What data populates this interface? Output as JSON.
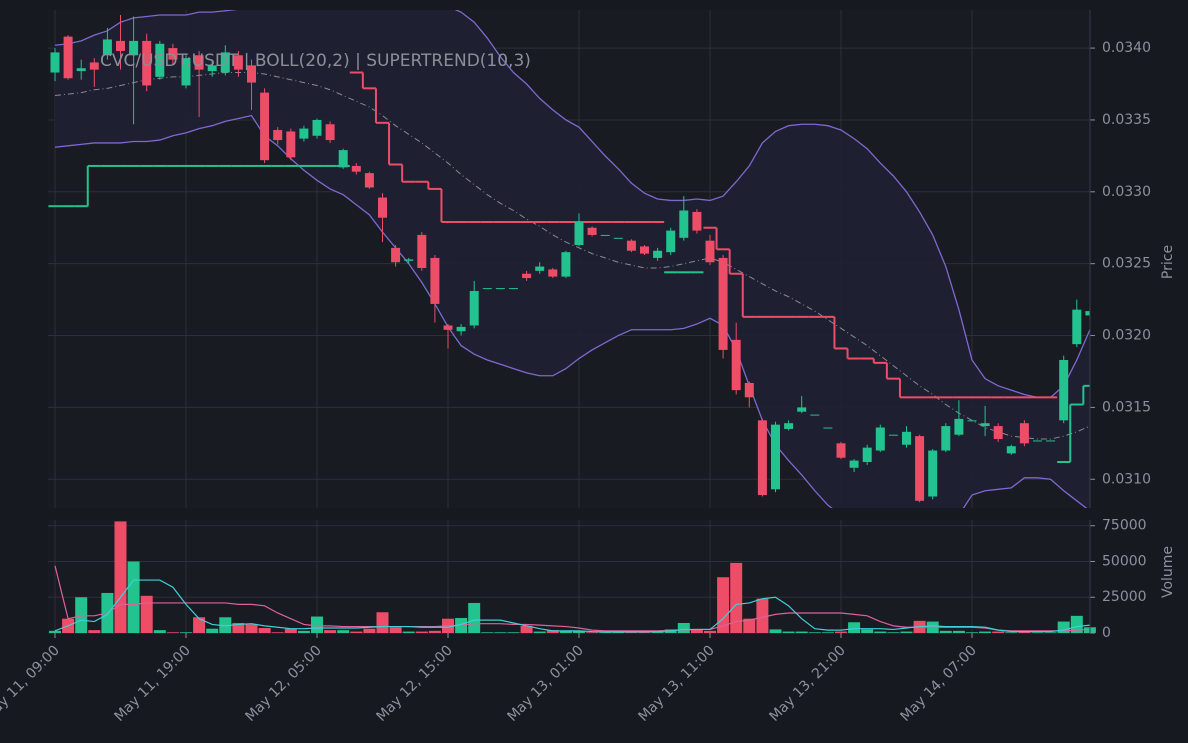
{
  "chart_data": {
    "type": "candlestick",
    "title": "CVC/USDT:USDT | BOLL(20,2) | SUPERTREND(10,3)",
    "ylabel": "Price",
    "categories": [
      "May 11, 09:00",
      null,
      null,
      null,
      null,
      null,
      null,
      null,
      null,
      null,
      "May 11, 19:00",
      null,
      null,
      null,
      null,
      null,
      null,
      null,
      null,
      null,
      "May 12, 05:00",
      null,
      null,
      null,
      null,
      null,
      null,
      null,
      null,
      null,
      "May 12, 15:00",
      null,
      null,
      null,
      null,
      null,
      null,
      null,
      null,
      null,
      "May 13, 01:00",
      null,
      null,
      null,
      null,
      null,
      null,
      null,
      null,
      null,
      "May 13, 11:00",
      null,
      null,
      null,
      null,
      null,
      null,
      null,
      null,
      null,
      "May 13, 21:00",
      null,
      null,
      null,
      null,
      null,
      null,
      null,
      null,
      null,
      "May 14, 07:00",
      null,
      null,
      null,
      null,
      null,
      null,
      null,
      null,
      null
    ],
    "open": [
      0.03383,
      0.03408,
      0.03384,
      0.0339,
      0.03395,
      0.03405,
      0.03395,
      0.03405,
      0.0338,
      0.034,
      0.03374,
      0.03395,
      0.03384,
      0.03383,
      0.03395,
      0.03388,
      0.03369,
      0.03343,
      0.03342,
      0.03337,
      0.03339,
      0.03347,
      0.03317,
      0.03318,
      0.03313,
      0.03296,
      0.03261,
      0.03252,
      0.0327,
      0.03254,
      0.03207,
      0.03203,
      0.03207,
      0.03233,
      0.03233,
      0.03233,
      0.03243,
      0.03245,
      0.03246,
      0.03241,
      0.03263,
      0.03275,
      0.0327,
      0.03268,
      0.03266,
      0.03262,
      0.03254,
      0.03258,
      0.03268,
      0.03286,
      0.03266,
      0.03254,
      0.03197,
      0.03167,
      0.03141,
      0.03093,
      0.03135,
      0.03147,
      0.03145,
      0.03136,
      0.03125,
      0.03108,
      0.03112,
      0.0312,
      0.03131,
      0.03124,
      0.0313,
      0.03088,
      0.0312,
      0.03131,
      0.03141,
      0.03137,
      0.03137,
      0.03118,
      0.03139,
      0.03127,
      0.03127,
      0.03141,
      0.03194,
      0.03214
    ],
    "high": [
      0.034,
      0.03409,
      0.03392,
      0.03393,
      0.03414,
      0.03423,
      0.03422,
      0.0341,
      0.03405,
      0.03403,
      0.03395,
      0.03398,
      0.03392,
      0.03402,
      0.03398,
      0.03392,
      0.03372,
      0.03345,
      0.03344,
      0.03346,
      0.03351,
      0.03349,
      0.0333,
      0.0332,
      0.03314,
      0.03299,
      0.03263,
      0.03254,
      0.03272,
      0.03256,
      0.03208,
      0.03208,
      0.03238,
      0.03233,
      0.03233,
      0.03233,
      0.03245,
      0.03251,
      0.03247,
      0.03259,
      0.03285,
      0.03276,
      0.0327,
      0.03268,
      0.03267,
      0.03263,
      0.03261,
      0.03275,
      0.03297,
      0.03288,
      0.0327,
      0.03256,
      0.03209,
      0.03168,
      0.03142,
      0.0314,
      0.03141,
      0.03158,
      0.03145,
      0.03136,
      0.03126,
      0.03114,
      0.03124,
      0.03138,
      0.03131,
      0.03137,
      0.03131,
      0.03121,
      0.03139,
      0.03155,
      0.03141,
      0.03151,
      0.03139,
      0.03124,
      0.03141,
      0.03127,
      0.03127,
      0.03186,
      0.03225,
      0.03218
    ],
    "low": [
      0.03377,
      0.03378,
      0.03378,
      0.03373,
      0.03392,
      0.03385,
      0.03347,
      0.0337,
      0.03378,
      0.03388,
      0.03372,
      0.03352,
      0.0338,
      0.03381,
      0.0338,
      0.03357,
      0.0332,
      0.03333,
      0.03322,
      0.03335,
      0.03337,
      0.03334,
      0.03316,
      0.03312,
      0.03302,
      0.03265,
      0.03248,
      0.0325,
      0.03245,
      0.03209,
      0.03191,
      0.032,
      0.03205,
      0.03233,
      0.03233,
      0.03233,
      0.03238,
      0.03243,
      0.0324,
      0.0324,
      0.03262,
      0.03269,
      0.0327,
      0.03268,
      0.03258,
      0.03256,
      0.03252,
      0.03256,
      0.03266,
      0.03271,
      0.03249,
      0.03184,
      0.03159,
      0.0315,
      0.03088,
      0.03091,
      0.03134,
      0.03146,
      0.03145,
      0.03136,
      0.03114,
      0.03105,
      0.0311,
      0.03119,
      0.03131,
      0.03122,
      0.03084,
      0.03086,
      0.03119,
      0.0313,
      0.03141,
      0.0313,
      0.03126,
      0.03117,
      0.03123,
      0.03127,
      0.03127,
      0.03139,
      0.03192,
      0.03213
    ],
    "close": [
      0.03397,
      0.03379,
      0.03386,
      0.03385,
      0.03406,
      0.03398,
      0.03405,
      0.03374,
      0.03403,
      0.03392,
      0.03393,
      0.03385,
      0.03388,
      0.03397,
      0.03385,
      0.03376,
      0.03322,
      0.03336,
      0.03324,
      0.03344,
      0.0335,
      0.03336,
      0.03329,
      0.03314,
      0.03303,
      0.03282,
      0.03251,
      0.03253,
      0.03247,
      0.03222,
      0.03204,
      0.03206,
      0.03231,
      0.03233,
      0.03233,
      0.03233,
      0.0324,
      0.03248,
      0.03241,
      0.03258,
      0.03279,
      0.0327,
      0.0327,
      0.03268,
      0.03259,
      0.03257,
      0.03259,
      0.03273,
      0.03287,
      0.03273,
      0.03251,
      0.0319,
      0.03162,
      0.03157,
      0.03089,
      0.03138,
      0.03139,
      0.0315,
      0.03145,
      0.03136,
      0.03115,
      0.03113,
      0.03122,
      0.03136,
      0.03131,
      0.03133,
      0.03085,
      0.0312,
      0.03137,
      0.03142,
      0.03141,
      0.03139,
      0.03128,
      0.03123,
      0.03125,
      0.03127,
      0.03127,
      0.03183,
      0.03218,
      0.03217
    ],
    "up_color": "#22c38e",
    "down_color": "#ee4d68",
    "ylim": [
      0.0308,
      0.034265
    ],
    "yticks": [
      {
        "value": 0.031,
        "label": "0.0310"
      },
      {
        "value": 0.0315,
        "label": "0.0315"
      },
      {
        "value": 0.032,
        "label": "0.0320"
      },
      {
        "value": 0.0325,
        "label": "0.0325"
      },
      {
        "value": 0.033,
        "label": "0.0330"
      },
      {
        "value": 0.0335,
        "label": "0.0335"
      },
      {
        "value": 0.034,
        "label": "0.0340"
      }
    ],
    "grid": true,
    "bollinger": {
      "color": "#7a6bd0",
      "middle_color": "#8a8a90",
      "fill": "#1f2033",
      "upper": [
        0.03402,
        0.03403,
        0.03405,
        0.03409,
        0.03412,
        0.03418,
        0.03421,
        0.03422,
        0.03423,
        0.03423,
        0.03423,
        0.03425,
        0.03425,
        0.03426,
        0.03427,
        0.03428,
        0.0343,
        0.03433,
        0.03435,
        0.03437,
        0.03438,
        0.0344,
        0.03441,
        0.03442,
        0.03442,
        0.03441,
        0.0344,
        0.03438,
        0.03435,
        0.03432,
        0.03429,
        0.03425,
        0.03418,
        0.03407,
        0.03394,
        0.03383,
        0.03375,
        0.03365,
        0.03357,
        0.0335,
        0.03345,
        0.03335,
        0.03325,
        0.03316,
        0.03306,
        0.03299,
        0.03295,
        0.03294,
        0.03294,
        0.03295,
        0.03294,
        0.03297,
        0.03307,
        0.03318,
        0.03334,
        0.03342,
        0.03346,
        0.03347,
        0.03347,
        0.03346,
        0.03343,
        0.03337,
        0.0333,
        0.0332,
        0.03311,
        0.033,
        0.03286,
        0.0327,
        0.03248,
        0.03218,
        0.03183,
        0.0317,
        0.03165,
        0.03162,
        0.03159,
        0.03157,
        0.03157,
        0.03165,
        0.03183,
        0.03204
      ],
      "middle": [
        0.03367,
        0.03368,
        0.03369,
        0.03371,
        0.03372,
        0.03374,
        0.03376,
        0.03378,
        0.03379,
        0.0338,
        0.0338,
        0.03381,
        0.03382,
        0.03383,
        0.03383,
        0.03383,
        0.03382,
        0.0338,
        0.03378,
        0.03376,
        0.03374,
        0.03371,
        0.03367,
        0.03363,
        0.03359,
        0.03353,
        0.03346,
        0.0334,
        0.03334,
        0.03327,
        0.0332,
        0.03312,
        0.03305,
        0.03298,
        0.03292,
        0.03287,
        0.03281,
        0.03276,
        0.0327,
        0.03265,
        0.03261,
        0.03257,
        0.03254,
        0.03251,
        0.03249,
        0.03247,
        0.03247,
        0.03248,
        0.0325,
        0.03252,
        0.03254,
        0.03251,
        0.03246,
        0.03241,
        0.03236,
        0.03231,
        0.03227,
        0.03222,
        0.03217,
        0.03211,
        0.03205,
        0.03199,
        0.03193,
        0.03186,
        0.03179,
        0.03172,
        0.03165,
        0.03159,
        0.03152,
        0.03146,
        0.03141,
        0.03136,
        0.03133,
        0.0313,
        0.03129,
        0.03128,
        0.03128,
        0.0313,
        0.03133,
        0.03137
      ],
      "lower": [
        0.03331,
        0.03332,
        0.03333,
        0.03334,
        0.03334,
        0.03334,
        0.03335,
        0.03335,
        0.03336,
        0.03339,
        0.03341,
        0.03344,
        0.03346,
        0.03349,
        0.03351,
        0.03353,
        0.03339,
        0.03332,
        0.03323,
        0.03315,
        0.03308,
        0.03302,
        0.03298,
        0.03291,
        0.03284,
        0.03272,
        0.03261,
        0.0325,
        0.03237,
        0.03222,
        0.03206,
        0.03193,
        0.03187,
        0.03183,
        0.0318,
        0.03177,
        0.03174,
        0.03172,
        0.03172,
        0.03177,
        0.03184,
        0.0319,
        0.03195,
        0.032,
        0.03204,
        0.03204,
        0.03204,
        0.03204,
        0.03205,
        0.03208,
        0.03212,
        0.03207,
        0.0319,
        0.03165,
        0.03141,
        0.03124,
        0.03113,
        0.03103,
        0.03092,
        0.03082,
        0.03075,
        0.0307,
        0.03066,
        0.03063,
        0.03061,
        0.0306,
        0.0306,
        0.03062,
        0.03067,
        0.03075,
        0.03089,
        0.03092,
        0.03093,
        0.03094,
        0.03101,
        0.03101,
        0.031,
        0.03092,
        0.03085,
        0.03078
      ]
    },
    "supertrend": {
      "up_color": "#21c48a",
      "down_color": "#ee4d68",
      "up": [
        0.0329,
        0.0329,
        0.0329,
        0.03318,
        0.03318,
        0.03318,
        0.03318,
        0.03318,
        0.03318,
        0.03318,
        0.03318,
        0.03318,
        0.03318,
        0.03318,
        0.03318,
        0.03318,
        0.03318,
        0.03318,
        0.03318,
        0.03318,
        0.03318,
        0.03318,
        0.03318,
        null,
        null,
        null,
        null,
        null,
        null,
        null,
        null,
        null,
        null,
        null,
        null,
        null,
        null,
        null,
        null,
        null,
        null,
        null,
        null,
        null,
        null,
        null,
        null,
        0.03244,
        0.03244,
        0.03244,
        null,
        null,
        null,
        null,
        null,
        null,
        null,
        null,
        null,
        null,
        null,
        null,
        null,
        null,
        null,
        null,
        null,
        null,
        null,
        null,
        null,
        null,
        null,
        null,
        null,
        null,
        null,
        0.03112,
        0.03152,
        0.03165
      ],
      "down": [
        null,
        null,
        null,
        null,
        null,
        null,
        null,
        null,
        null,
        null,
        null,
        null,
        null,
        null,
        null,
        null,
        null,
        null,
        null,
        null,
        null,
        null,
        null,
        0.03383,
        0.03372,
        0.03348,
        0.03319,
        0.03307,
        0.03307,
        0.03302,
        0.03279,
        0.03279,
        0.03279,
        0.03279,
        0.03279,
        0.03279,
        0.03279,
        0.03279,
        0.03279,
        0.03279,
        0.03279,
        0.03279,
        0.03279,
        0.03279,
        0.03279,
        0.03279,
        0.03279,
        null,
        null,
        null,
        0.03275,
        0.0326,
        0.03243,
        0.03213,
        0.03213,
        0.03213,
        0.03213,
        0.03213,
        0.03213,
        0.03213,
        0.03191,
        0.03184,
        0.03184,
        0.03181,
        0.0317,
        0.03157,
        0.03157,
        0.03157,
        0.03157,
        0.03157,
        0.03157,
        0.03157,
        0.03157,
        0.03157,
        0.03157,
        0.03157,
        0.03157,
        null,
        null,
        null
      ]
    },
    "volume": {
      "label": "Volume",
      "values": [
        1500,
        10000,
        25000,
        2000,
        28000,
        78000,
        50000,
        26000,
        2000,
        500,
        500,
        11000,
        3000,
        11000,
        7000,
        6000,
        3500,
        500,
        3000,
        1500,
        11500,
        2000,
        2000,
        1000,
        3000,
        14500,
        4000,
        1000,
        1000,
        1500,
        10000,
        10500,
        21000,
        500,
        500,
        500,
        5000,
        1000,
        2000,
        1500,
        1500,
        500,
        500,
        500,
        500,
        500,
        1000,
        2500,
        7000,
        2500,
        1500,
        39000,
        49000,
        10000,
        24000,
        2500,
        1000,
        1000,
        500,
        500,
        1000,
        7500,
        2500,
        1000,
        500,
        1000,
        8500,
        8000,
        1500,
        1500,
        500,
        1000,
        1000,
        500,
        1000,
        500,
        500,
        8000,
        12000,
        4000
      ],
      "ylim": [
        0,
        79000
      ],
      "yticks": [
        0,
        25000,
        50000,
        75000
      ],
      "ma": [
        {
          "color": "#e0609a",
          "values": [
            47000,
            10000,
            12000,
            12000,
            14000,
            20000,
            20000,
            21000,
            21000,
            21000,
            21000,
            21000,
            21000,
            21000,
            20000,
            20000,
            19000,
            14000,
            10000,
            6000,
            5000,
            5000,
            4500,
            4500,
            4500,
            4500,
            4500,
            4500,
            4500,
            4500,
            5000,
            5500,
            6500,
            6500,
            6500,
            6000,
            6000,
            5500,
            5000,
            4500,
            3500,
            2000,
            1500,
            1500,
            1500,
            1500,
            1500,
            1800,
            2200,
            2500,
            2500,
            5000,
            8000,
            9000,
            11000,
            13000,
            14000,
            14000,
            14000,
            14000,
            14000,
            13000,
            12000,
            8000,
            5000,
            4000,
            4000,
            4000,
            4000,
            4000,
            4000,
            3500,
            2000,
            1500,
            1500,
            1500,
            1500,
            1500,
            2000,
            2500
          ]
        },
        {
          "color": "#3fd0d8",
          "values": [
            1500,
            5000,
            9000,
            8000,
            13000,
            25000,
            37000,
            37000,
            37000,
            32000,
            20000,
            10000,
            6000,
            5000,
            6000,
            6500,
            5000,
            4000,
            3000,
            3000,
            3500,
            3500,
            3500,
            3500,
            4000,
            4500,
            4500,
            4500,
            4000,
            4000,
            4000,
            6000,
            9000,
            9000,
            9000,
            7000,
            5000,
            3000,
            1500,
            1500,
            1500,
            1000,
            800,
            800,
            800,
            800,
            1000,
            1500,
            2500,
            2500,
            2500,
            10000,
            20000,
            21000,
            24000,
            25000,
            19000,
            10000,
            3000,
            2000,
            2000,
            3000,
            3000,
            3000,
            2500,
            3500,
            4500,
            5000,
            4500,
            4500,
            4500,
            4000,
            2000,
            1000,
            1000,
            1000,
            1000,
            2000,
            4500,
            5500
          ]
        }
      ]
    }
  }
}
